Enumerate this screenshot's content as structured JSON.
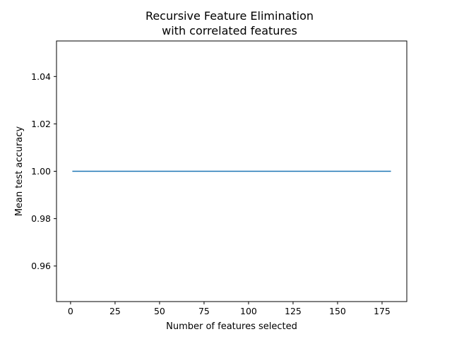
{
  "chart_data": {
    "type": "line",
    "title": "Recursive Feature Elimination",
    "subtitle": "with correlated features",
    "xlabel": "Number of features selected",
    "ylabel": "Mean test accuracy",
    "xlim": [
      -7.9,
      188.9
    ],
    "ylim": [
      0.945,
      1.055
    ],
    "xticks": [
      0,
      25,
      50,
      75,
      100,
      125,
      150,
      175
    ],
    "xtick_labels": [
      "0",
      "25",
      "50",
      "75",
      "100",
      "125",
      "150",
      "175"
    ],
    "yticks": [
      0.96,
      0.98,
      1.0,
      1.02,
      1.04
    ],
    "ytick_labels": [
      "0.96",
      "0.98",
      "1.00",
      "1.02",
      "1.04"
    ],
    "grid": false,
    "series": [
      {
        "color": "#1f77b4",
        "x": [
          1,
          180
        ],
        "y": [
          1.0,
          1.0
        ]
      }
    ]
  }
}
